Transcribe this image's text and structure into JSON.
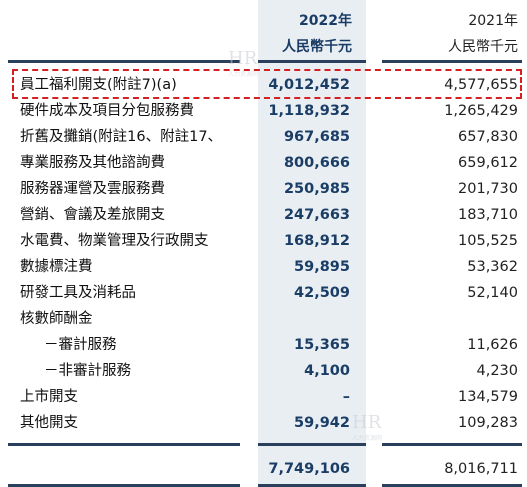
{
  "header": {
    "col2022_year": "2022年",
    "col2022_unit": "人民幣千元",
    "col2021_year": "2021年",
    "col2021_unit": "人民幣千元"
  },
  "rows": [
    {
      "label": "員工福利開支(附註7)(a)",
      "v2022": "4,012,452",
      "v2021": "4,577,655"
    },
    {
      "label": "硬件成本及項目分包服務費",
      "v2022": "1,118,932",
      "v2021": "1,265,429"
    },
    {
      "label": "折舊及攤銷(附註16、附註17、",
      "v2022": "967,685",
      "v2021": "657,830"
    },
    {
      "label": "專業服務及其他諮詢費",
      "v2022": "800,666",
      "v2021": "659,612"
    },
    {
      "label": "服務器運營及雲服務費",
      "v2022": "250,985",
      "v2021": "201,730"
    },
    {
      "label": "營銷、會議及差旅開支",
      "v2022": "247,663",
      "v2021": "183,710"
    },
    {
      "label": "水電費、物業管理及行政開支",
      "v2022": "168,912",
      "v2021": "105,525"
    },
    {
      "label": "數據標注費",
      "v2022": "59,895",
      "v2021": "53,362"
    },
    {
      "label": "研發工具及消耗品",
      "v2022": "42,509",
      "v2021": "52,140"
    },
    {
      "label": "核數師酬金",
      "v2022": "",
      "v2021": ""
    },
    {
      "label": "－審計服務",
      "v2022": "15,365",
      "v2021": "11,626"
    },
    {
      "label": "－非審計服務",
      "v2022": "4,100",
      "v2021": "4,230"
    },
    {
      "label": "上市開支",
      "v2022": "–",
      "v2021": "134,579"
    },
    {
      "label": "其他開支",
      "v2022": "59,942",
      "v2021": "109,283"
    }
  ],
  "total": {
    "v2022": "7,749,106",
    "v2021": "8,016,711"
  },
  "watermark": {
    "text": "HR",
    "sub": "人力资源网"
  },
  "colors": {
    "accent": "#1a3d66",
    "highlight": "#d42020",
    "shade": "#e9eef3"
  }
}
